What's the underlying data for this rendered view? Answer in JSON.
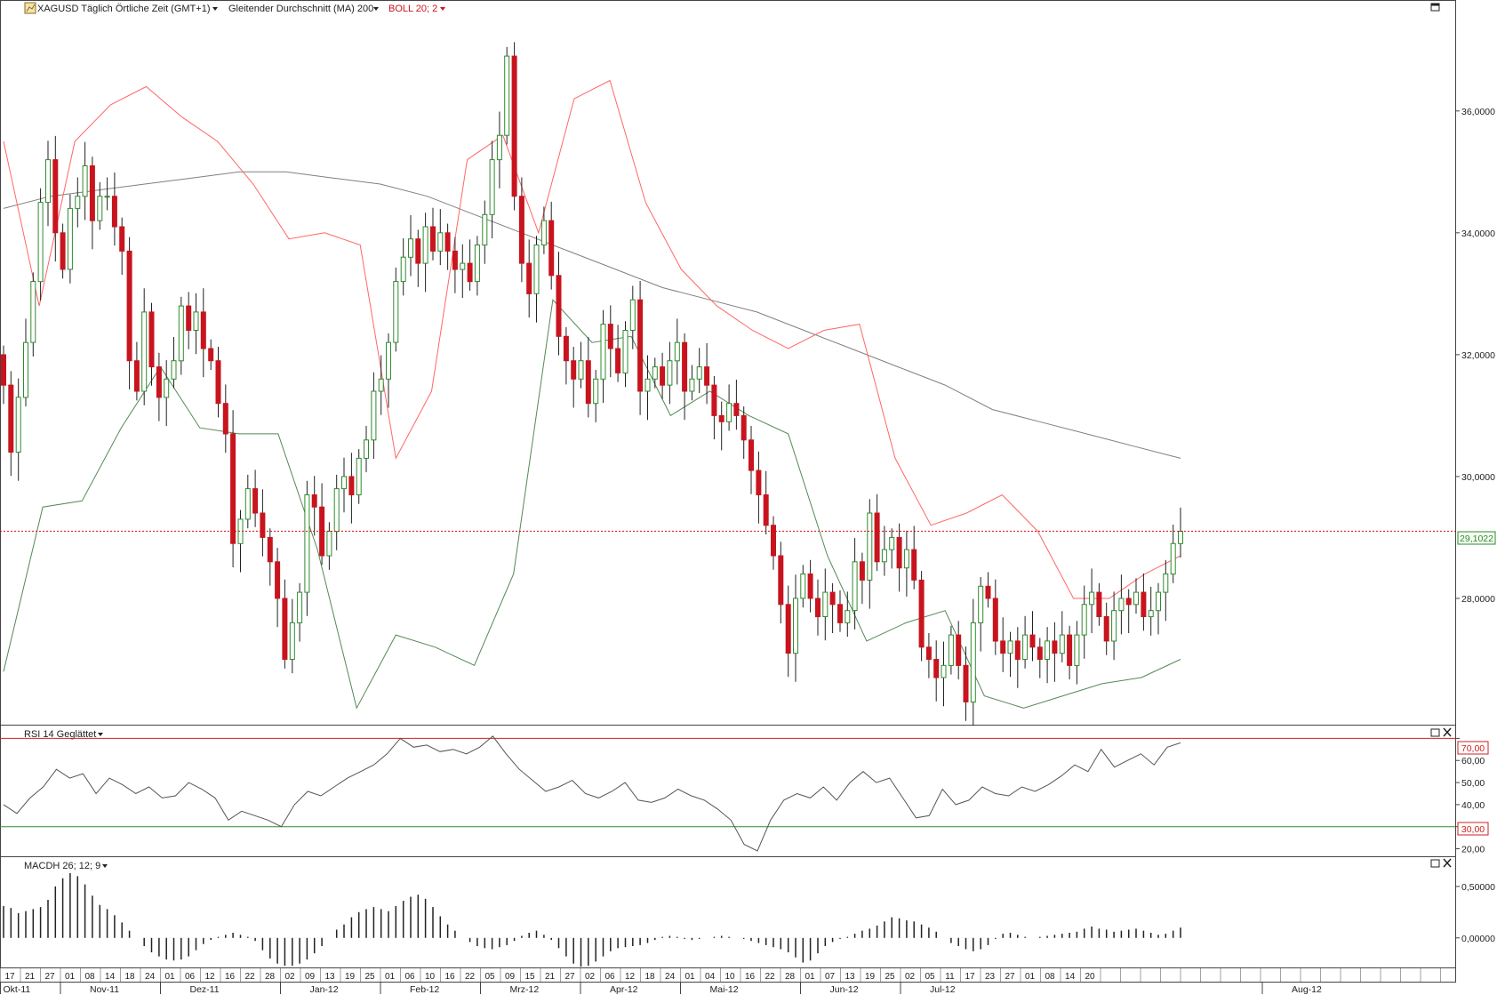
{
  "header": {
    "symbol_label": "XAGUSD Täglich Örtliche Zeit (GMT+1)",
    "ma_label": "Gleitender Durchschnitt (MA) 200",
    "boll_label": "BOLL 20; 2",
    "rsi_label": "RSI 14 Geglättet",
    "macd_label": "MACDH 26; 12; 9"
  },
  "icons": {
    "symbol_icon": "chart-icon",
    "dropdown": "chevron-down-icon",
    "maximize": "maximize-icon",
    "close": "close-icon"
  },
  "colors": {
    "up": "#2e8b2e",
    "up_fill": "#ffffff",
    "down": "#c8141e",
    "ma": "#808080",
    "boll_upper": "#ff6666",
    "boll_lower": "#558855",
    "rsi_line": "#555555",
    "rsi_upper_line": "#cc2222",
    "rsi_lower_line": "#2e8b2e",
    "price_line": "#cc1111",
    "macd_bar": "#222222"
  },
  "price_axis_labels": [
    "36,0000",
    "34,0000",
    "32,0000",
    "30,0000",
    "28,0000"
  ],
  "rsi_axis_labels": [
    "70,00",
    "60,00",
    "50,00",
    "40,00",
    "30,00",
    "20,00"
  ],
  "macd_axis_labels": [
    "0,50000",
    "0,00000"
  ],
  "x_axis": {
    "day_labels": [
      "17",
      "21",
      "27",
      "01",
      "08",
      "14",
      "18",
      "24",
      "01",
      "06",
      "12",
      "16",
      "22",
      "28",
      "02",
      "09",
      "13",
      "19",
      "25",
      "01",
      "06",
      "10",
      "16",
      "22",
      "05",
      "09",
      "15",
      "21",
      "27",
      "02",
      "06",
      "12",
      "18",
      "24",
      "01",
      "04",
      "10",
      "16",
      "22",
      "28",
      "01",
      "07",
      "13",
      "19",
      "25",
      "02",
      "05",
      "11",
      "17",
      "23",
      "27",
      "01",
      "08",
      "14",
      "20"
    ],
    "month_labels": [
      "Okt-11",
      "Nov-11",
      "Dez-11",
      "Jan-12",
      "Feb-12",
      "Mrz-12",
      "Apr-12",
      "Mai-12",
      "Jun-12",
      "Jul-12",
      "Aug-12"
    ]
  },
  "chart_data": [
    {
      "type": "candlestick",
      "panel": "price",
      "ylim": [
        26.0,
        37.5
      ],
      "last_value": "29,1022",
      "last_price": 29.1022,
      "series": [
        {
          "name": "XAGUSD",
          "points": [
            [
              32.0,
              31.5
            ],
            [
              31.5,
              30.4
            ],
            [
              30.4,
              31.3
            ],
            [
              31.3,
              32.2
            ],
            [
              32.2,
              33.2
            ],
            [
              33.2,
              34.5
            ],
            [
              34.5,
              35.2
            ],
            [
              35.2,
              34.0
            ],
            [
              34.0,
              33.4
            ],
            [
              33.4,
              34.4
            ],
            [
              34.4,
              34.6
            ],
            [
              34.6,
              35.1
            ],
            [
              35.1,
              34.2
            ],
            [
              34.2,
              34.6
            ],
            [
              34.6,
              34.6
            ],
            [
              34.6,
              34.1
            ],
            [
              34.1,
              33.7
            ],
            [
              33.7,
              31.9
            ],
            [
              31.9,
              31.4
            ],
            [
              31.4,
              32.7
            ],
            [
              32.7,
              31.8
            ],
            [
              31.8,
              31.3
            ],
            [
              31.3,
              31.6
            ],
            [
              31.6,
              31.9
            ],
            [
              31.9,
              32.8
            ],
            [
              32.8,
              32.4
            ],
            [
              32.4,
              32.7
            ],
            [
              32.7,
              32.1
            ],
            [
              32.1,
              31.9
            ],
            [
              31.9,
              31.2
            ],
            [
              31.2,
              30.7
            ],
            [
              30.7,
              28.9
            ],
            [
              28.9,
              29.3
            ],
            [
              29.3,
              29.8
            ],
            [
              29.8,
              29.4
            ],
            [
              29.4,
              29.0
            ],
            [
              29.0,
              28.6
            ],
            [
              28.6,
              28.0
            ],
            [
              28.0,
              27.0
            ],
            [
              27.0,
              27.6
            ],
            [
              27.6,
              28.1
            ],
            [
              28.1,
              29.7
            ],
            [
              29.7,
              29.5
            ],
            [
              29.5,
              28.7
            ],
            [
              28.7,
              29.1
            ],
            [
              29.1,
              29.8
            ],
            [
              29.8,
              30.0
            ],
            [
              30.0,
              29.7
            ],
            [
              29.7,
              30.3
            ],
            [
              30.3,
              30.6
            ],
            [
              30.6,
              31.4
            ],
            [
              31.4,
              31.6
            ],
            [
              31.6,
              32.2
            ],
            [
              32.2,
              33.2
            ],
            [
              33.2,
              33.6
            ],
            [
              33.6,
              33.9
            ],
            [
              33.9,
              33.5
            ],
            [
              33.5,
              34.1
            ],
            [
              34.1,
              33.7
            ],
            [
              33.7,
              34.0
            ],
            [
              34.0,
              33.7
            ],
            [
              33.7,
              33.4
            ],
            [
              33.4,
              33.5
            ],
            [
              33.5,
              33.2
            ],
            [
              33.2,
              33.8
            ],
            [
              33.8,
              34.3
            ],
            [
              34.3,
              35.2
            ],
            [
              35.2,
              35.6
            ],
            [
              35.6,
              36.9
            ],
            [
              36.9,
              34.6
            ],
            [
              34.6,
              33.5
            ],
            [
              33.5,
              33.0
            ],
            [
              33.0,
              33.8
            ],
            [
              33.8,
              34.2
            ],
            [
              34.2,
              33.3
            ],
            [
              33.3,
              32.3
            ],
            [
              32.3,
              31.9
            ],
            [
              31.9,
              31.6
            ],
            [
              31.6,
              31.9
            ],
            [
              31.9,
              31.2
            ],
            [
              31.2,
              31.6
            ],
            [
              31.6,
              32.5
            ],
            [
              32.5,
              32.1
            ],
            [
              32.1,
              31.7
            ],
            [
              31.7,
              32.4
            ],
            [
              32.4,
              32.9
            ],
            [
              32.9,
              31.4
            ],
            [
              31.4,
              31.6
            ],
            [
              31.6,
              31.8
            ],
            [
              31.8,
              31.5
            ],
            [
              31.5,
              31.9
            ],
            [
              31.9,
              32.2
            ],
            [
              32.2,
              31.4
            ],
            [
              31.4,
              31.6
            ],
            [
              31.6,
              31.8
            ],
            [
              31.8,
              31.5
            ],
            [
              31.5,
              31.0
            ],
            [
              31.0,
              30.9
            ],
            [
              30.9,
              31.2
            ],
            [
              31.2,
              31.0
            ],
            [
              31.0,
              30.6
            ],
            [
              30.6,
              30.1
            ],
            [
              30.1,
              29.7
            ],
            [
              29.7,
              29.2
            ],
            [
              29.2,
              28.7
            ],
            [
              28.7,
              27.9
            ],
            [
              27.9,
              27.1
            ],
            [
              27.1,
              28.0
            ],
            [
              28.0,
              28.4
            ],
            [
              28.4,
              28.0
            ],
            [
              28.0,
              27.7
            ],
            [
              27.7,
              28.1
            ],
            [
              28.1,
              27.9
            ],
            [
              27.9,
              27.6
            ],
            [
              27.6,
              27.8
            ],
            [
              27.8,
              28.6
            ],
            [
              28.6,
              28.3
            ],
            [
              28.3,
              29.4
            ],
            [
              29.4,
              28.6
            ],
            [
              28.6,
              28.8
            ],
            [
              28.8,
              29.0
            ],
            [
              29.0,
              28.5
            ],
            [
              28.5,
              28.8
            ],
            [
              28.8,
              28.3
            ],
            [
              28.3,
              27.2
            ],
            [
              27.2,
              27.0
            ],
            [
              27.0,
              26.7
            ],
            [
              26.7,
              26.9
            ],
            [
              26.9,
              27.4
            ],
            [
              27.4,
              26.9
            ],
            [
              26.9,
              26.3
            ],
            [
              26.3,
              27.6
            ],
            [
              27.6,
              28.2
            ],
            [
              28.2,
              28.0
            ],
            [
              28.0,
              27.3
            ],
            [
              27.3,
              27.1
            ],
            [
              27.1,
              27.3
            ],
            [
              27.3,
              27.0
            ],
            [
              27.0,
              27.4
            ],
            [
              27.4,
              27.2
            ],
            [
              27.2,
              27.0
            ],
            [
              27.0,
              27.3
            ],
            [
              27.3,
              27.1
            ],
            [
              27.1,
              27.4
            ],
            [
              27.4,
              26.9
            ],
            [
              26.9,
              27.4
            ],
            [
              27.4,
              27.9
            ],
            [
              27.9,
              28.1
            ],
            [
              28.1,
              27.7
            ],
            [
              27.7,
              27.3
            ],
            [
              27.3,
              27.8
            ],
            [
              27.8,
              28.0
            ],
            [
              28.0,
              27.9
            ],
            [
              27.9,
              28.1
            ],
            [
              28.1,
              27.7
            ],
            [
              27.7,
              27.8
            ],
            [
              27.8,
              28.1
            ],
            [
              28.1,
              28.4
            ],
            [
              28.4,
              28.9
            ],
            [
              28.9,
              29.1
            ]
          ]
        },
        {
          "name": "Gleitender Durchschnitt (MA) 200",
          "values": [
            34.4,
            34.6,
            34.7,
            34.8,
            34.9,
            35.0,
            35.0,
            34.9,
            34.8,
            34.6,
            34.3,
            34.0,
            33.7,
            33.4,
            33.1,
            32.9,
            32.7,
            32.4,
            32.1,
            31.8,
            31.5,
            31.1,
            30.9,
            30.7,
            30.5,
            30.3
          ]
        },
        {
          "name": "BOLL 20; 2 upper",
          "values": [
            35.5,
            32.8,
            35.5,
            36.1,
            36.4,
            35.9,
            35.5,
            34.8,
            33.9,
            34.0,
            33.8,
            30.3,
            31.4,
            35.2,
            35.6,
            34.0,
            36.2,
            36.5,
            34.5,
            33.4,
            32.8,
            32.4,
            32.1,
            32.4,
            32.5,
            30.3,
            29.2,
            29.4,
            29.7,
            29.1,
            28.0,
            28.0,
            28.4,
            28.7
          ]
        },
        {
          "name": "BOLL 20; 2 lower",
          "values": [
            26.8,
            29.5,
            29.6,
            30.8,
            31.8,
            30.8,
            30.7,
            30.7,
            28.8,
            26.2,
            27.4,
            27.2,
            26.9,
            28.4,
            32.9,
            32.2,
            32.3,
            31.0,
            31.4,
            31.0,
            30.7,
            28.7,
            27.3,
            27.6,
            27.8,
            26.4,
            26.2,
            26.4,
            26.6,
            26.7,
            27.0
          ]
        }
      ]
    },
    {
      "type": "line",
      "panel": "rsi",
      "ylim": [
        17,
        75
      ],
      "reference_lines": [
        70,
        30
      ],
      "series": [
        {
          "name": "RSI 14 Geglättet",
          "values": [
            40,
            36,
            43,
            48,
            56,
            52,
            54,
            45,
            52,
            49,
            45,
            48,
            43,
            44,
            50,
            47,
            43,
            33,
            37,
            35,
            33,
            30,
            40,
            46,
            44,
            48,
            52,
            55,
            58,
            63,
            70,
            66,
            67,
            64,
            65,
            63,
            66,
            71,
            63,
            56,
            51,
            46,
            48,
            51,
            45,
            43,
            46,
            50,
            42,
            41,
            43,
            47,
            44,
            42,
            38,
            33,
            22,
            19,
            33,
            42,
            45,
            43,
            48,
            42,
            50,
            55,
            50,
            52,
            43,
            34,
            35,
            47,
            40,
            42,
            48,
            45,
            44,
            48,
            46,
            49,
            53,
            58,
            55,
            65,
            57,
            60,
            63,
            58,
            66,
            68
          ]
        }
      ]
    },
    {
      "type": "bar",
      "panel": "macd",
      "ylim": [
        -0.27,
        0.75
      ],
      "series": [
        {
          "name": "MACDH 26; 12; 9",
          "values": [
            0.31,
            0.29,
            0.24,
            0.26,
            0.28,
            0.3,
            0.37,
            0.5,
            0.58,
            0.63,
            0.6,
            0.52,
            0.41,
            0.32,
            0.28,
            0.22,
            0.15,
            0.07,
            0.0,
            -0.08,
            -0.14,
            -0.18,
            -0.21,
            -0.22,
            -0.21,
            -0.18,
            -0.12,
            -0.06,
            -0.02,
            0.01,
            0.03,
            0.05,
            0.03,
            0.01,
            -0.03,
            -0.12,
            -0.2,
            -0.25,
            -0.27,
            -0.27,
            -0.25,
            -0.21,
            -0.15,
            -0.08,
            0.0,
            0.08,
            0.13,
            0.2,
            0.25,
            0.28,
            0.3,
            0.28,
            0.26,
            0.31,
            0.36,
            0.4,
            0.42,
            0.38,
            0.3,
            0.21,
            0.13,
            0.07,
            0.0,
            -0.04,
            -0.08,
            -0.1,
            -0.11,
            -0.09,
            -0.07,
            -0.03,
            0.02,
            0.05,
            0.07,
            0.03,
            -0.02,
            -0.1,
            -0.18,
            -0.25,
            -0.28,
            -0.27,
            -0.23,
            -0.18,
            -0.13,
            -0.1,
            -0.09,
            -0.08,
            -0.07,
            -0.05,
            -0.02,
            0.01,
            0.02,
            0.01,
            -0.01,
            -0.02,
            -0.01,
            0.0,
            0.01,
            0.02,
            0.01,
            0.0,
            -0.01,
            -0.03,
            -0.05,
            -0.07,
            -0.09,
            -0.11,
            -0.14,
            -0.19,
            -0.24,
            -0.22,
            -0.15,
            -0.08,
            -0.04,
            -0.01,
            0.01,
            0.04,
            0.07,
            0.09,
            0.12,
            0.16,
            0.2,
            0.19,
            0.17,
            0.16,
            0.13,
            0.1,
            0.06,
            0.0,
            -0.05,
            -0.08,
            -0.11,
            -0.13,
            -0.11,
            -0.07,
            -0.01,
            0.04,
            0.05,
            0.03,
            0.01,
            0.0,
            0.01,
            0.02,
            0.03,
            0.04,
            0.05,
            0.06,
            0.09,
            0.11,
            0.09,
            0.08,
            0.06,
            0.07,
            0.08,
            0.09,
            0.07,
            0.05,
            0.03,
            0.04,
            0.07,
            0.1
          ]
        }
      ]
    }
  ]
}
